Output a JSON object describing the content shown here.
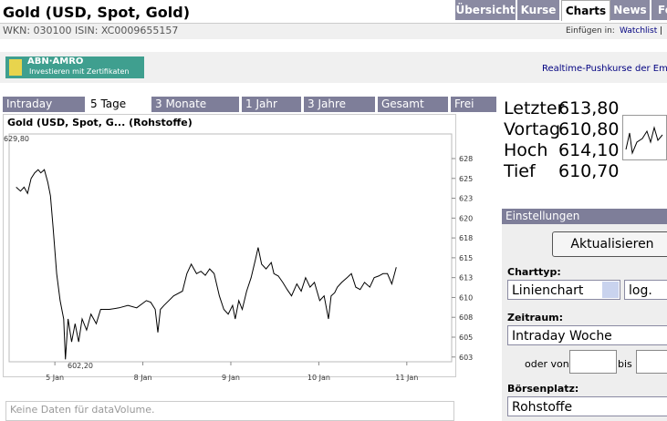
{
  "header": {
    "title": "Gold (USD, Spot, Gold)",
    "ids": "WKN: 030100  ISIN: XC0009655157",
    "insert_label": "Einfügen in:",
    "watchlist": "Watchlist",
    "separator": "|"
  },
  "tabs": [
    "Übersicht",
    "Kurse",
    "Charts",
    "News",
    "Fo"
  ],
  "banner": {
    "logo": "ABN·AMRO",
    "slogan": "Investieren mit Zertifikaten",
    "link": "Realtime-Pushkurse der Emit"
  },
  "chart_tabs": [
    "Intraday",
    "5 Tage",
    "3 Monate",
    "1 Jahr",
    "3 Jahre",
    "Gesamt",
    "Frei"
  ],
  "chart_data": {
    "type": "line",
    "title": "Gold (USD, Spot, G... (Rohstoffe)",
    "color": "#000000",
    "x": [
      -0.44,
      -0.39,
      -0.35,
      -0.31,
      -0.27,
      -0.23,
      -0.19,
      -0.16,
      -0.12,
      -0.08,
      -0.05,
      -0.02,
      0.02,
      0.06,
      0.1,
      0.12,
      0.15,
      0.19,
      0.23,
      0.27,
      0.31,
      0.36,
      0.41,
      0.47,
      0.52,
      0.62,
      0.73,
      0.83,
      0.93,
      1.04,
      1.09,
      1.14,
      1.17,
      1.2,
      1.24,
      1.35,
      1.45,
      1.5,
      1.55,
      1.61,
      1.66,
      1.71,
      1.76,
      1.81,
      1.87,
      1.92,
      1.97,
      2.02,
      2.05,
      2.09,
      2.13,
      2.18,
      2.23,
      2.28,
      2.31,
      2.35,
      2.4,
      2.46,
      2.49,
      2.54,
      2.59,
      2.64,
      2.69,
      2.75,
      2.8,
      2.85,
      2.9,
      2.95,
      3.01,
      3.06,
      3.11,
      3.14,
      3.18,
      3.21,
      3.26,
      3.32,
      3.37,
      3.42,
      3.47,
      3.52,
      3.58,
      3.63,
      3.68,
      3.73,
      3.78,
      3.83,
      3.88
    ],
    "values": [
      623.9,
      623.4,
      623.9,
      623.1,
      625.0,
      625.7,
      626.1,
      625.7,
      626.1,
      624.5,
      622.8,
      618.8,
      613.0,
      609.6,
      607.3,
      602.2,
      607.3,
      604.4,
      606.7,
      604.4,
      607.3,
      605.9,
      607.9,
      606.7,
      608.5,
      608.5,
      608.7,
      609.0,
      608.7,
      609.6,
      609.4,
      608.5,
      605.6,
      608.5,
      609.0,
      610.2,
      610.8,
      613.0,
      614.2,
      613.0,
      613.3,
      612.8,
      613.6,
      613.0,
      610.2,
      608.5,
      607.9,
      609.0,
      607.3,
      609.6,
      608.5,
      610.8,
      612.5,
      614.8,
      616.3,
      614.2,
      613.6,
      614.4,
      613.0,
      612.7,
      611.9,
      611.0,
      610.2,
      611.7,
      610.8,
      612.5,
      611.3,
      611.9,
      609.6,
      610.2,
      607.3,
      610.2,
      610.6,
      611.3,
      611.9,
      612.5,
      613.0,
      611.3,
      611.0,
      611.9,
      611.3,
      612.5,
      612.7,
      613.0,
      613.0,
      611.7,
      613.8
    ],
    "xlim": [
      -0.52,
      4.51
    ],
    "xticks": [
      {
        "value": 0,
        "label": "5 Jan"
      },
      {
        "value": 1,
        "label": "8 Jan"
      },
      {
        "value": 2,
        "label": "9 Jan"
      },
      {
        "value": 3,
        "label": "10 Jan"
      },
      {
        "value": 4,
        "label": "11 Jan"
      }
    ],
    "ylim": [
      601.9,
      630.6
    ],
    "yticks": [
      {
        "value": 602.5,
        "label": "603"
      },
      {
        "value": 605,
        "label": "605"
      },
      {
        "value": 607.5,
        "label": "608"
      },
      {
        "value": 610,
        "label": "610"
      },
      {
        "value": 612.5,
        "label": "613"
      },
      {
        "value": 615,
        "label": "615"
      },
      {
        "value": 617.5,
        "label": "618"
      },
      {
        "value": 620,
        "label": "620"
      },
      {
        "value": 622.5,
        "label": "623"
      },
      {
        "value": 625,
        "label": "625"
      },
      {
        "value": 627.5,
        "label": "628"
      }
    ],
    "annotations": [
      "629,80",
      "602,20"
    ],
    "note": "Keine Daten für dataVolume."
  },
  "quotes": [
    {
      "label": "Letzter",
      "value": "613,80"
    },
    {
      "label": "Vortag",
      "value": "610,80"
    },
    {
      "label": "Hoch",
      "value": "614,10"
    },
    {
      "label": "Tief",
      "value": "610,70"
    }
  ],
  "settings": {
    "title": "Einstellungen",
    "button": "Aktualisieren",
    "charttype_label": "Charttyp:",
    "charttype": "Linienchart",
    "scale": "log.",
    "period_label": "Zeitraum:",
    "period": "Intraday Woche",
    "from_label": "oder von",
    "to_label": "bis",
    "exchange_label": "Börsenplatz:",
    "exchange": "Rohstoffe"
  }
}
